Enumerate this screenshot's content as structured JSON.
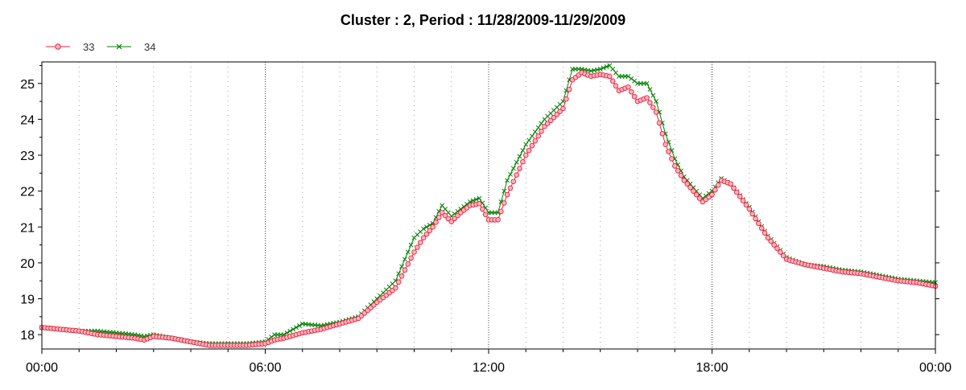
{
  "chart_data": {
    "type": "line",
    "title": "Cluster : 2, Period : 11/28/2009-11/29/2009",
    "xlabel": "",
    "ylabel": "",
    "x_ticks": [
      "00:00",
      "06:00",
      "12:00",
      "18:00",
      "00:00"
    ],
    "x_tick_hours": [
      0,
      6,
      12,
      18,
      24
    ],
    "xlim": [
      0,
      24
    ],
    "y_ticks": [
      18,
      19,
      20,
      21,
      22,
      23,
      24,
      25
    ],
    "ylim": [
      17.6,
      25.6
    ],
    "grid": true,
    "legend_position": "top-left",
    "x_hours": [
      0,
      0.5,
      1,
      1.5,
      2,
      2.5,
      2.75,
      3,
      3.5,
      4,
      4.5,
      5,
      5.5,
      6,
      6.25,
      6.5,
      7,
      7.5,
      8,
      8.5,
      9,
      9.5,
      9.75,
      10,
      10.25,
      10.5,
      10.75,
      11,
      11.25,
      11.5,
      11.75,
      12,
      12.25,
      12.5,
      13,
      13.5,
      14,
      14.25,
      14.5,
      14.75,
      15,
      15.25,
      15.5,
      15.75,
      16,
      16.25,
      16.5,
      16.75,
      17,
      17.25,
      17.5,
      17.75,
      18,
      18.25,
      18.5,
      19,
      19.5,
      20,
      20.5,
      21,
      21.5,
      22,
      22.5,
      23,
      23.5,
      24
    ],
    "series": [
      {
        "name": "33",
        "color": "#e8203a",
        "marker": "circle",
        "values": [
          18.2,
          18.15,
          18.1,
          18.0,
          17.95,
          17.9,
          17.85,
          17.95,
          17.9,
          17.8,
          17.7,
          17.7,
          17.7,
          17.75,
          17.85,
          17.9,
          18.05,
          18.15,
          18.3,
          18.45,
          18.9,
          19.3,
          19.8,
          20.3,
          20.7,
          21.0,
          21.4,
          21.15,
          21.4,
          21.6,
          21.65,
          21.2,
          21.2,
          21.9,
          23.0,
          23.8,
          24.3,
          25.1,
          25.3,
          25.2,
          25.25,
          25.2,
          24.8,
          24.9,
          24.5,
          24.6,
          24.2,
          23.3,
          22.7,
          22.3,
          22.0,
          21.7,
          21.9,
          22.3,
          22.2,
          21.5,
          20.7,
          20.1,
          19.95,
          19.85,
          19.75,
          19.7,
          19.6,
          19.5,
          19.45,
          19.35
        ]
      },
      {
        "name": "34",
        "color": "#008000",
        "marker": "x",
        "values": [
          18.2,
          18.15,
          18.1,
          18.1,
          18.05,
          18.0,
          17.95,
          18.0,
          17.9,
          17.8,
          17.75,
          17.75,
          17.75,
          17.8,
          18.0,
          18.0,
          18.3,
          18.25,
          18.35,
          18.5,
          19.0,
          19.5,
          20.1,
          20.7,
          20.95,
          21.1,
          21.6,
          21.3,
          21.5,
          21.7,
          21.8,
          21.4,
          21.4,
          22.3,
          23.3,
          24.0,
          24.5,
          25.4,
          25.4,
          25.35,
          25.4,
          25.5,
          25.2,
          25.2,
          25.0,
          25.0,
          24.5,
          23.6,
          22.9,
          22.4,
          22.1,
          21.8,
          22.0,
          22.35,
          22.2,
          21.55,
          20.75,
          20.15,
          19.95,
          19.9,
          19.8,
          19.75,
          19.65,
          19.55,
          19.5,
          19.45
        ]
      }
    ]
  }
}
